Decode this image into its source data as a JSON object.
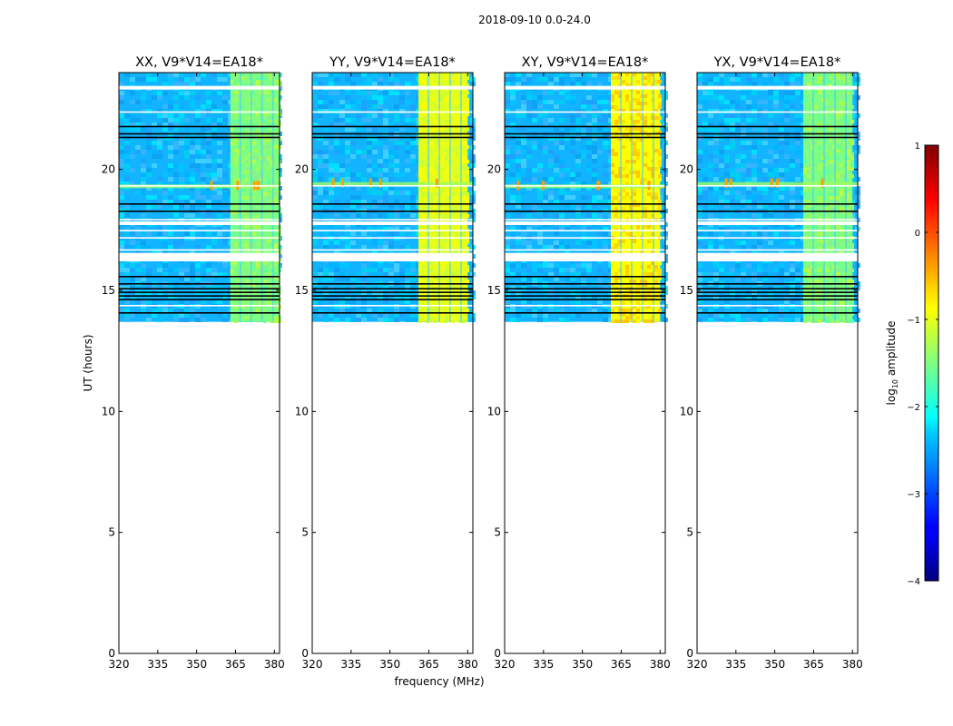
{
  "chart_data": {
    "type": "heatmap",
    "suptitle": "2018-09-10 0.0-24.0",
    "xlabel": "frequency (MHz)",
    "ylabel": "UT (hours)",
    "xlim": [
      320,
      382
    ],
    "ylim": [
      0,
      24
    ],
    "xticks": [
      320,
      335,
      350,
      365,
      380
    ],
    "yticks": [
      0,
      5,
      10,
      15,
      20
    ],
    "data_time_range_hours": [
      13.7,
      24.0
    ],
    "panels": [
      {
        "title": "XX, V9*V14=EA18*",
        "polarization": "XX",
        "rfi_band_mhz": [
          363,
          382
        ],
        "rfi_level": "green",
        "rfi_line_at_ut": 19.3
      },
      {
        "title": "YY, V9*V14=EA18*",
        "polarization": "YY",
        "rfi_band_mhz": [
          361,
          380
        ],
        "rfi_level": "yellow",
        "rfi_line_at_ut": 19.4
      },
      {
        "title": "XY, V9*V14=EA18*",
        "polarization": "XY",
        "rfi_band_mhz": [
          361,
          380
        ],
        "rfi_level": "yellow-orange",
        "rfi_line_at_ut": 19.3
      },
      {
        "title": "YX, V9*V14=EA18*",
        "polarization": "YX",
        "rfi_band_mhz": [
          361,
          380
        ],
        "rfi_level": "green",
        "rfi_line_at_ut": 19.4
      }
    ],
    "flagged_gaps_ut": [
      [
        23.3,
        23.45
      ],
      [
        16.2,
        16.55
      ],
      [
        17.7,
        17.85
      ]
    ],
    "colorbar": {
      "label_prefix": "log",
      "label_subscript": "10",
      "label_suffix": " amplitude",
      "range": [
        -4,
        1
      ],
      "ticks": [
        1,
        0,
        -1,
        -2,
        -3,
        -4
      ],
      "tick_labels": [
        "1",
        "0",
        "−1",
        "−2",
        "−3",
        "−4"
      ],
      "colormap": "jet"
    }
  }
}
